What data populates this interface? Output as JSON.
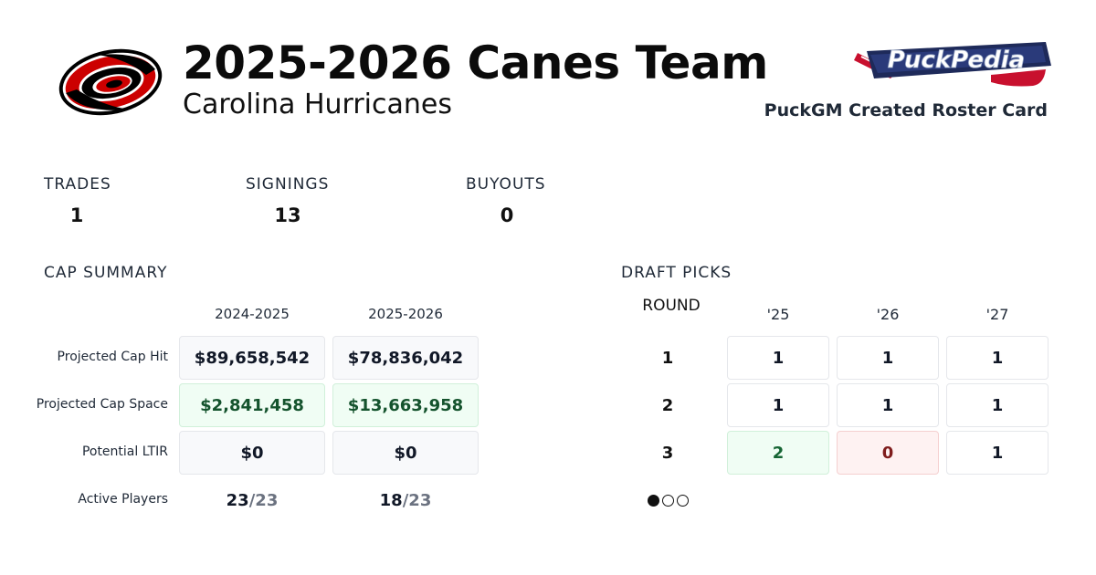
{
  "header": {
    "title": "2025-2026 Canes Team",
    "subtitle": "Carolina Hurricanes",
    "brand_caption": "PuckGM Created Roster Card",
    "team_logo_icon": "hurricanes-logo",
    "brand_logo_icon": "puckpedia-logo",
    "brand_logo_text": "PuckPedia"
  },
  "stats": {
    "trades": {
      "label": "TRADES",
      "value": "1"
    },
    "signings": {
      "label": "SIGNINGS",
      "value": "13"
    },
    "buyouts": {
      "label": "BUYOUTS",
      "value": "0"
    }
  },
  "cap_summary": {
    "title": "CAP SUMMARY",
    "columns": [
      "2024-2025",
      "2025-2026"
    ],
    "rows": [
      {
        "label": "Projected Cap Hit",
        "values": [
          "$89,658,542",
          "$78,836,042"
        ]
      },
      {
        "label": "Projected Cap Space",
        "values": [
          "$2,841,458",
          "$13,663,958"
        ]
      },
      {
        "label": "Potential LTIR",
        "values": [
          "$0",
          "$0"
        ]
      }
    ],
    "active_players": {
      "label": "Active Players",
      "values": [
        {
          "count": "23",
          "max": "/23"
        },
        {
          "count": "18",
          "max": "/23"
        }
      ]
    }
  },
  "draft_picks": {
    "title": "DRAFT PICKS",
    "round_label": "ROUND",
    "years": [
      "'25",
      "'26",
      "'27"
    ],
    "rounds": [
      {
        "round": "1",
        "picks": [
          "1",
          "1",
          "1"
        ]
      },
      {
        "round": "2",
        "picks": [
          "1",
          "1",
          "1"
        ]
      },
      {
        "round": "3",
        "picks": [
          "2",
          "0",
          "1"
        ]
      }
    ],
    "pagination": {
      "pages": 3,
      "active": 1
    }
  },
  "colors": {
    "surplus_bg": "#f0fdf4",
    "surplus_text": "#14532d",
    "deficit_bg": "#fef2f2",
    "deficit_text": "#7f1d1d",
    "canes_red": "#cc0000"
  }
}
